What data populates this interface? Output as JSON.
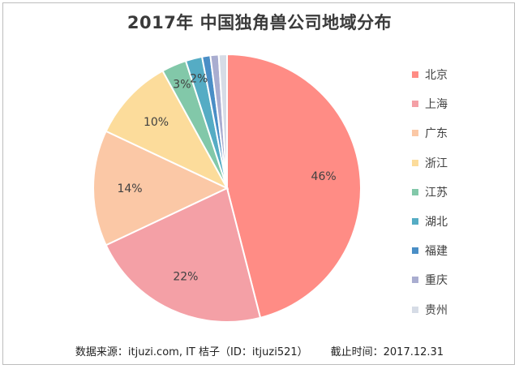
{
  "chart_data": {
    "type": "pie",
    "title": "2017年 中国独角兽公司地域分布",
    "categories": [
      "北京",
      "上海",
      "广东",
      "浙江",
      "江苏",
      "湖北",
      "福建",
      "重庆",
      "贵州"
    ],
    "values": [
      46,
      22,
      14,
      10,
      3,
      2,
      1,
      1,
      1
    ],
    "data_labels": [
      "46%",
      "22%",
      "14%",
      "10%",
      "3%",
      "2%",
      "",
      "",
      ""
    ],
    "colors": [
      "#FF8C85",
      "#F4A0A6",
      "#FBC8A6",
      "#FCDC9B",
      "#82C8A9",
      "#55ACC4",
      "#4A8EC6",
      "#A9ADD0",
      "#D6DCE6"
    ],
    "legend_position": "right"
  },
  "footer": {
    "source": "数据来源：itjuzi.com, IT 桔子（ID：itjuzi521）",
    "date": "截止时间：2017.12.31"
  }
}
